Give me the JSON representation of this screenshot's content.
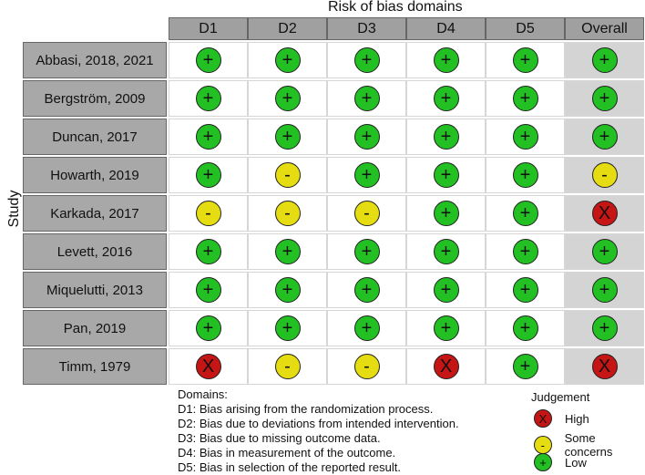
{
  "title": "Risk of bias domains",
  "ylabel": "Study",
  "columns": [
    "D1",
    "D2",
    "D3",
    "D4",
    "D5",
    "Overall"
  ],
  "studies": [
    "Abbasi, 2018, 2021",
    "Bergström, 2009",
    "Duncan, 2017",
    "Howarth, 2019",
    "Karkada, 2017",
    "Levett, 2016",
    "Miquelutti, 2013",
    "Pan, 2019",
    "Timm, 1979"
  ],
  "judgements": [
    [
      "low",
      "low",
      "low",
      "low",
      "low",
      "low"
    ],
    [
      "low",
      "low",
      "low",
      "low",
      "low",
      "low"
    ],
    [
      "low",
      "low",
      "low",
      "low",
      "low",
      "low"
    ],
    [
      "low",
      "some",
      "low",
      "low",
      "low",
      "some"
    ],
    [
      "some",
      "some",
      "some",
      "low",
      "low",
      "high"
    ],
    [
      "low",
      "low",
      "low",
      "low",
      "low",
      "low"
    ],
    [
      "low",
      "low",
      "low",
      "low",
      "low",
      "low"
    ],
    [
      "low",
      "low",
      "low",
      "low",
      "low",
      "low"
    ],
    [
      "high",
      "some",
      "some",
      "high",
      "low",
      "high"
    ]
  ],
  "symbols": {
    "low": "+",
    "some": "-",
    "high": "X"
  },
  "colors": {
    "low": "#22c022",
    "some": "#e5dc12",
    "high": "#c61515"
  },
  "legend_domains": {
    "title": "Domains:",
    "items": [
      "D1: Bias arising from the randomization process.",
      "D2: Bias due to deviations from intended intervention.",
      "D3: Bias due to missing outcome data.",
      "D4: Bias in measurement of the outcome.",
      "D5: Bias in selection of the reported result."
    ]
  },
  "legend_judgement": {
    "title": "Judgement",
    "items": [
      {
        "key": "high",
        "label": "High"
      },
      {
        "key": "some",
        "label": "Some concerns"
      },
      {
        "key": "low",
        "label": "Low"
      }
    ]
  }
}
